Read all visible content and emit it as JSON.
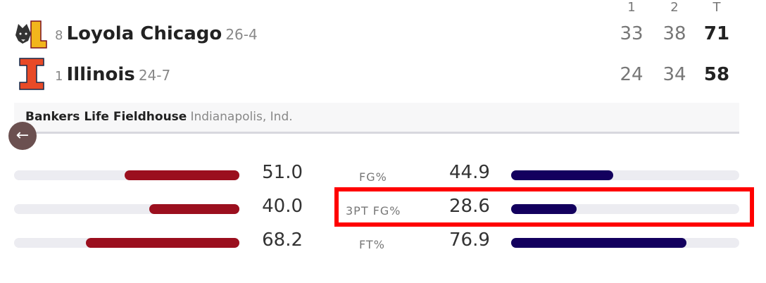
{
  "periods": [
    "1",
    "2",
    "T"
  ],
  "teams": [
    {
      "rank": "8",
      "name": "Loyola Chicago",
      "record": "26-4",
      "scores": [
        "33",
        "38"
      ],
      "total": "71",
      "logo": "loyola-wolf-L-logo"
    },
    {
      "rank": "1",
      "name": "Illinois",
      "record": "24-7",
      "scores": [
        "24",
        "34"
      ],
      "total": "58",
      "logo": "illinois-block-I-logo"
    }
  ],
  "venue": {
    "name": "Bankers Life Fieldhouse",
    "location": "Indianapolis, Ind."
  },
  "back_icon": "arrow-left-icon",
  "colors": {
    "loyola": "#9b0f1e",
    "illinois": "#13005e",
    "track": "#ececf1",
    "highlight": "#ff0000"
  },
  "stats": [
    {
      "label": "FG%",
      "left": "51.0",
      "right": "44.9",
      "left_pct": 51.0,
      "right_pct": 44.9
    },
    {
      "label": "3PT FG%",
      "left": "40.0",
      "right": "28.6",
      "left_pct": 40.0,
      "right_pct": 28.6,
      "highlighted": true
    },
    {
      "label": "FT%",
      "left": "68.2",
      "right": "76.9",
      "left_pct": 68.2,
      "right_pct": 76.9
    }
  ]
}
